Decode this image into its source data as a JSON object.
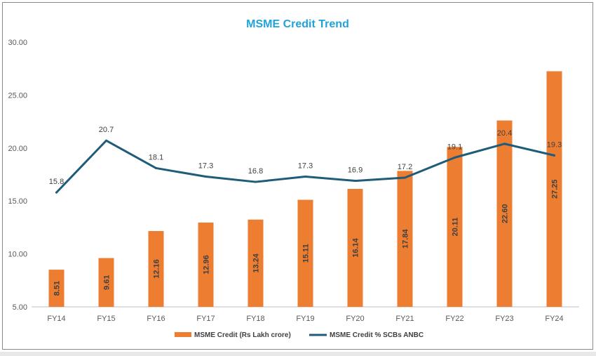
{
  "chart_data": {
    "type": "bar",
    "title": "MSME Credit Trend",
    "categories": [
      "FY14",
      "FY15",
      "FY16",
      "FY17",
      "FY18",
      "FY19",
      "FY20",
      "FY21",
      "FY22",
      "FY23",
      "FY24"
    ],
    "ylim": [
      5.0,
      30.0
    ],
    "yticks": [
      "5.00",
      "10.00",
      "15.00",
      "20.00",
      "25.00",
      "30.00"
    ],
    "grid": false,
    "legend_placement": "bottom",
    "series": [
      {
        "name": "MSME Credit (Rs Lakh crore)",
        "type": "bar",
        "color": "#ED7D31",
        "values": [
          8.51,
          9.61,
          12.16,
          12.96,
          13.24,
          15.11,
          16.14,
          17.84,
          20.11,
          22.6,
          27.25
        ],
        "labels": [
          "8.51",
          "9.61",
          "12.16",
          "12.96",
          "13.24",
          "15.11",
          "16.14",
          "17.84",
          "20.11",
          "22.60",
          "27.25"
        ]
      },
      {
        "name": "MSME Credit % SCBs ANBC",
        "type": "line",
        "color": "#1F5C7A",
        "values": [
          15.8,
          20.7,
          18.1,
          17.3,
          16.8,
          17.3,
          16.9,
          17.2,
          19.1,
          20.4,
          19.3
        ],
        "labels": [
          "15.8",
          "20.7",
          "18.1",
          "17.3",
          "16.8",
          "17.3",
          "16.9",
          "17.2",
          "19.1",
          "20.4",
          "19.3"
        ]
      }
    ]
  },
  "colors": {
    "title": "#1FA3DA",
    "axis": "#bfbfbf"
  }
}
